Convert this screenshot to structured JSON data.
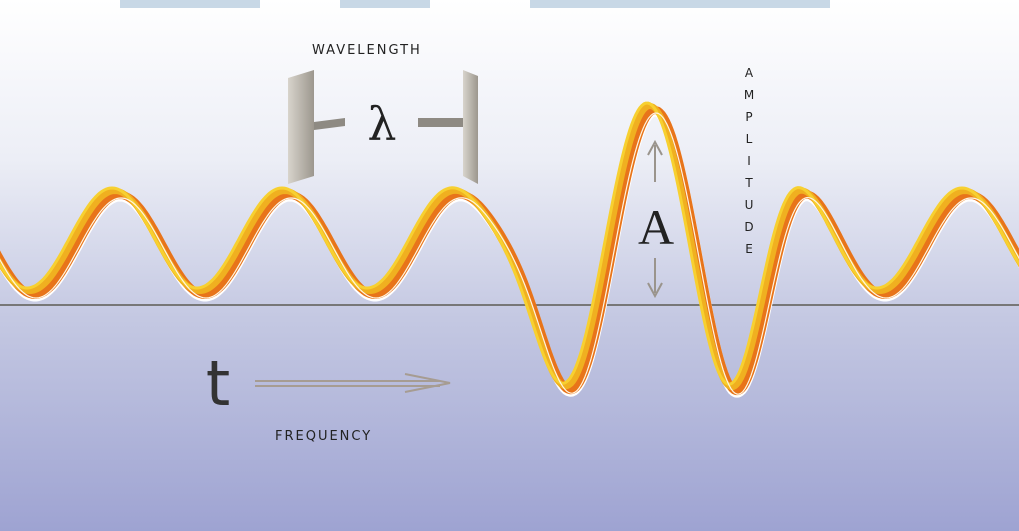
{
  "labels": {
    "wavelength": "WAVELENGTH",
    "lambda": "λ",
    "amplitude_symbol": "A",
    "amplitude": "AMPLITUDE",
    "time_symbol": "t",
    "frequency": "FREQUENCY"
  }
}
